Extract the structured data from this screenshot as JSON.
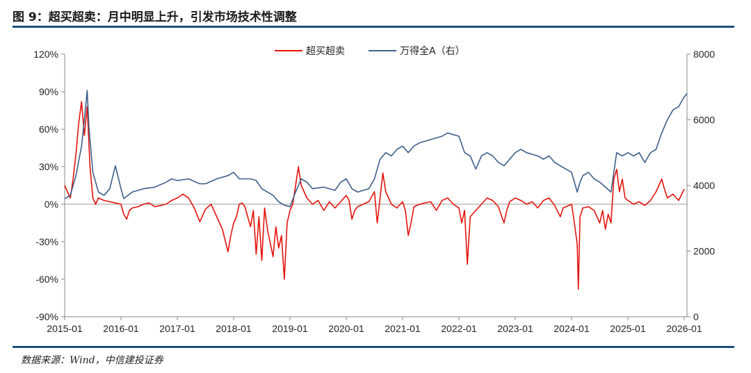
{
  "figure": {
    "title": "图 9：超买超卖：月中明显上升，引发市场技术性调整",
    "source": "数据来源：Wind，中信建投证券"
  },
  "colors": {
    "left_series": "#e3120b",
    "right_series": "#3e5f8a",
    "rule": "#1f4e79"
  },
  "chart_data": {
    "type": "line",
    "x_ticks": [
      "2015-01",
      "2016-01",
      "2017-01",
      "2018-01",
      "2019-01",
      "2020-01",
      "2021-01",
      "2022-01",
      "2023-01",
      "2024-01",
      "2025-01",
      "2026-01"
    ],
    "y_left": {
      "min": -90,
      "max": 120,
      "ticks": [
        "120%",
        "90%",
        "60%",
        "30%",
        "0%",
        "-30%",
        "-60%",
        "-90%"
      ]
    },
    "y_right": {
      "min": 0,
      "max": 8000,
      "ticks": [
        "8000",
        "6000",
        "4000",
        "2000",
        "0"
      ]
    },
    "series": [
      {
        "name": "超买超卖",
        "axis": "left",
        "color": "#e3120b",
        "points": [
          [
            2015.0,
            15
          ],
          [
            2015.05,
            10
          ],
          [
            2015.1,
            5
          ],
          [
            2015.15,
            20
          ],
          [
            2015.2,
            40
          ],
          [
            2015.25,
            65
          ],
          [
            2015.3,
            82
          ],
          [
            2015.35,
            55
          ],
          [
            2015.4,
            78
          ],
          [
            2015.45,
            30
          ],
          [
            2015.5,
            5
          ],
          [
            2015.55,
            0
          ],
          [
            2015.6,
            5
          ],
          [
            2015.7,
            3
          ],
          [
            2015.8,
            2
          ],
          [
            2015.9,
            1
          ],
          [
            2016.0,
            0
          ],
          [
            2016.05,
            -8
          ],
          [
            2016.1,
            -12
          ],
          [
            2016.15,
            -5
          ],
          [
            2016.2,
            -3
          ],
          [
            2016.3,
            -2
          ],
          [
            2016.4,
            0
          ],
          [
            2016.5,
            1
          ],
          [
            2016.6,
            -2
          ],
          [
            2016.7,
            -1
          ],
          [
            2016.8,
            0
          ],
          [
            2016.9,
            3
          ],
          [
            2017.0,
            5
          ],
          [
            2017.1,
            8
          ],
          [
            2017.2,
            5
          ],
          [
            2017.3,
            -3
          ],
          [
            2017.4,
            -14
          ],
          [
            2017.5,
            -4
          ],
          [
            2017.6,
            0
          ],
          [
            2017.7,
            -10
          ],
          [
            2017.8,
            -20
          ],
          [
            2017.9,
            -38
          ],
          [
            2017.95,
            -25
          ],
          [
            2018.0,
            -15
          ],
          [
            2018.05,
            -10
          ],
          [
            2018.1,
            0
          ],
          [
            2018.15,
            1
          ],
          [
            2018.2,
            -2
          ],
          [
            2018.3,
            -18
          ],
          [
            2018.35,
            -5
          ],
          [
            2018.4,
            -40
          ],
          [
            2018.45,
            -10
          ],
          [
            2018.5,
            -45
          ],
          [
            2018.55,
            -3
          ],
          [
            2018.6,
            -20
          ],
          [
            2018.7,
            -42
          ],
          [
            2018.75,
            -18
          ],
          [
            2018.8,
            -35
          ],
          [
            2018.85,
            -25
          ],
          [
            2018.9,
            -60
          ],
          [
            2018.95,
            -15
          ],
          [
            2019.0,
            -5
          ],
          [
            2019.05,
            0
          ],
          [
            2019.1,
            15
          ],
          [
            2019.15,
            30
          ],
          [
            2019.2,
            15
          ],
          [
            2019.3,
            5
          ],
          [
            2019.4,
            0
          ],
          [
            2019.5,
            3
          ],
          [
            2019.6,
            -5
          ],
          [
            2019.7,
            2
          ],
          [
            2019.8,
            -3
          ],
          [
            2019.9,
            2
          ],
          [
            2020.0,
            7
          ],
          [
            2020.05,
            3
          ],
          [
            2020.1,
            -12
          ],
          [
            2020.15,
            -5
          ],
          [
            2020.2,
            -2
          ],
          [
            2020.3,
            0
          ],
          [
            2020.4,
            2
          ],
          [
            2020.5,
            10
          ],
          [
            2020.55,
            -15
          ],
          [
            2020.6,
            5
          ],
          [
            2020.65,
            25
          ],
          [
            2020.7,
            10
          ],
          [
            2020.8,
            0
          ],
          [
            2020.9,
            -3
          ],
          [
            2021.0,
            2
          ],
          [
            2021.05,
            -5
          ],
          [
            2021.1,
            -25
          ],
          [
            2021.15,
            -15
          ],
          [
            2021.2,
            -2
          ],
          [
            2021.3,
            0
          ],
          [
            2021.5,
            2
          ],
          [
            2021.6,
            -5
          ],
          [
            2021.7,
            3
          ],
          [
            2021.8,
            5
          ],
          [
            2021.9,
            0
          ],
          [
            2022.0,
            -3
          ],
          [
            2022.05,
            -15
          ],
          [
            2022.1,
            -5
          ],
          [
            2022.15,
            -48
          ],
          [
            2022.2,
            -10
          ],
          [
            2022.3,
            -5
          ],
          [
            2022.4,
            0
          ],
          [
            2022.5,
            5
          ],
          [
            2022.6,
            3
          ],
          [
            2022.7,
            -2
          ],
          [
            2022.8,
            -15
          ],
          [
            2022.85,
            -5
          ],
          [
            2022.9,
            2
          ],
          [
            2023.0,
            5
          ],
          [
            2023.1,
            3
          ],
          [
            2023.2,
            0
          ],
          [
            2023.3,
            2
          ],
          [
            2023.4,
            -3
          ],
          [
            2023.5,
            3
          ],
          [
            2023.6,
            5
          ],
          [
            2023.7,
            -1
          ],
          [
            2023.8,
            -10
          ],
          [
            2023.85,
            -3
          ],
          [
            2023.9,
            -2
          ],
          [
            2024.0,
            0
          ],
          [
            2024.05,
            -15
          ],
          [
            2024.1,
            -32
          ],
          [
            2024.12,
            -68
          ],
          [
            2024.15,
            -10
          ],
          [
            2024.2,
            -3
          ],
          [
            2024.3,
            -2
          ],
          [
            2024.4,
            -5
          ],
          [
            2024.5,
            -15
          ],
          [
            2024.55,
            -5
          ],
          [
            2024.6,
            -20
          ],
          [
            2024.65,
            -8
          ],
          [
            2024.7,
            -15
          ],
          [
            2024.75,
            20
          ],
          [
            2024.8,
            28
          ],
          [
            2024.85,
            10
          ],
          [
            2024.9,
            20
          ],
          [
            2024.95,
            5
          ],
          [
            2025.0,
            3
          ],
          [
            2025.1,
            0
          ],
          [
            2025.2,
            2
          ],
          [
            2025.3,
            -1
          ],
          [
            2025.4,
            3
          ],
          [
            2025.5,
            10
          ],
          [
            2025.6,
            20
          ],
          [
            2025.65,
            12
          ],
          [
            2025.7,
            5
          ],
          [
            2025.8,
            8
          ],
          [
            2025.9,
            3
          ],
          [
            2026.0,
            12
          ]
        ]
      },
      {
        "name": "万得全A（右）",
        "axis": "right",
        "color": "#3e5f8a",
        "points": [
          [
            2015.0,
            3600
          ],
          [
            2015.1,
            3700
          ],
          [
            2015.2,
            4300
          ],
          [
            2015.3,
            5200
          ],
          [
            2015.35,
            6000
          ],
          [
            2015.4,
            6900
          ],
          [
            2015.43,
            5800
          ],
          [
            2015.5,
            4400
          ],
          [
            2015.6,
            3800
          ],
          [
            2015.7,
            3700
          ],
          [
            2015.8,
            3900
          ],
          [
            2015.9,
            4600
          ],
          [
            2016.0,
            3900
          ],
          [
            2016.05,
            3600
          ],
          [
            2016.2,
            3800
          ],
          [
            2016.4,
            3900
          ],
          [
            2016.6,
            3950
          ],
          [
            2016.8,
            4100
          ],
          [
            2016.9,
            4200
          ],
          [
            2017.0,
            4150
          ],
          [
            2017.2,
            4200
          ],
          [
            2017.4,
            4050
          ],
          [
            2017.5,
            4050
          ],
          [
            2017.7,
            4200
          ],
          [
            2017.9,
            4300
          ],
          [
            2018.0,
            4400
          ],
          [
            2018.1,
            4200
          ],
          [
            2018.3,
            4200
          ],
          [
            2018.4,
            4150
          ],
          [
            2018.5,
            3900
          ],
          [
            2018.7,
            3700
          ],
          [
            2018.8,
            3500
          ],
          [
            2018.9,
            3400
          ],
          [
            2019.0,
            3350
          ],
          [
            2019.1,
            3800
          ],
          [
            2019.2,
            4200
          ],
          [
            2019.3,
            4100
          ],
          [
            2019.4,
            3900
          ],
          [
            2019.6,
            3950
          ],
          [
            2019.8,
            3850
          ],
          [
            2019.9,
            4100
          ],
          [
            2020.0,
            4200
          ],
          [
            2020.1,
            3900
          ],
          [
            2020.2,
            3800
          ],
          [
            2020.4,
            3900
          ],
          [
            2020.5,
            4200
          ],
          [
            2020.55,
            4500
          ],
          [
            2020.6,
            4800
          ],
          [
            2020.7,
            5000
          ],
          [
            2020.8,
            4900
          ],
          [
            2020.9,
            5100
          ],
          [
            2021.0,
            5200
          ],
          [
            2021.1,
            5000
          ],
          [
            2021.2,
            5200
          ],
          [
            2021.3,
            5300
          ],
          [
            2021.5,
            5400
          ],
          [
            2021.7,
            5500
          ],
          [
            2021.8,
            5600
          ],
          [
            2021.9,
            5550
          ],
          [
            2022.0,
            5500
          ],
          [
            2022.1,
            5000
          ],
          [
            2022.2,
            4900
          ],
          [
            2022.3,
            4500
          ],
          [
            2022.4,
            4900
          ],
          [
            2022.5,
            5000
          ],
          [
            2022.6,
            4900
          ],
          [
            2022.7,
            4700
          ],
          [
            2022.8,
            4600
          ],
          [
            2022.9,
            4800
          ],
          [
            2023.0,
            5000
          ],
          [
            2023.1,
            5100
          ],
          [
            2023.2,
            5000
          ],
          [
            2023.4,
            4900
          ],
          [
            2023.5,
            4800
          ],
          [
            2023.6,
            4900
          ],
          [
            2023.7,
            4700
          ],
          [
            2023.8,
            4600
          ],
          [
            2023.9,
            4500
          ],
          [
            2024.0,
            4400
          ],
          [
            2024.1,
            3800
          ],
          [
            2024.15,
            4100
          ],
          [
            2024.2,
            4300
          ],
          [
            2024.3,
            4400
          ],
          [
            2024.4,
            4200
          ],
          [
            2024.5,
            4100
          ],
          [
            2024.6,
            3950
          ],
          [
            2024.7,
            3800
          ],
          [
            2024.75,
            4400
          ],
          [
            2024.8,
            5000
          ],
          [
            2024.9,
            4900
          ],
          [
            2025.0,
            5000
          ],
          [
            2025.1,
            4900
          ],
          [
            2025.2,
            5000
          ],
          [
            2025.3,
            4700
          ],
          [
            2025.4,
            5000
          ],
          [
            2025.5,
            5100
          ],
          [
            2025.6,
            5600
          ],
          [
            2025.7,
            6000
          ],
          [
            2025.8,
            6300
          ],
          [
            2025.9,
            6400
          ],
          [
            2026.0,
            6700
          ],
          [
            2026.05,
            6800
          ]
        ]
      }
    ]
  },
  "legend": {
    "left_label": "超买超卖",
    "right_label": "万得全A（右）"
  }
}
